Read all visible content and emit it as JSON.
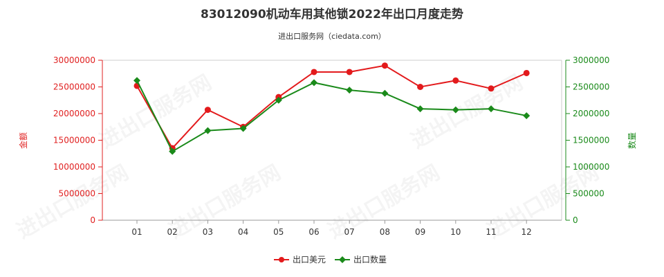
{
  "chart_data": {
    "type": "line",
    "title": "83012090机动车用其他锁2022年出口月度走势",
    "subtitle": "进出口服务网（ciedata.com）",
    "categories": [
      "01",
      "02",
      "03",
      "04",
      "05",
      "06",
      "07",
      "08",
      "09",
      "10",
      "11",
      "12"
    ],
    "y_left": {
      "label": "金额",
      "range": [
        0,
        30000000
      ],
      "ticks": [
        "0",
        "5000000",
        "10000000",
        "15000000",
        "20000000",
        "25000000",
        "30000000"
      ]
    },
    "y_right": {
      "label": "数量",
      "range": [
        0,
        3000000
      ],
      "ticks": [
        "0",
        "500000",
        "1000000",
        "1500000",
        "2000000",
        "2500000",
        "3000000"
      ]
    },
    "series": [
      {
        "name": "出口美元",
        "axis": "left",
        "color": "#e31a1c",
        "marker": "circle",
        "values": [
          25200000,
          13500000,
          20700000,
          17500000,
          23100000,
          27800000,
          27800000,
          29000000,
          25000000,
          26200000,
          24700000,
          27600000
        ]
      },
      {
        "name": "出口数量",
        "axis": "right",
        "color": "#1a8a1a",
        "marker": "diamond",
        "values": [
          2620000,
          1290000,
          1680000,
          1720000,
          2250000,
          2580000,
          2440000,
          2380000,
          2090000,
          2070000,
          2090000,
          1960000
        ]
      }
    ],
    "grid": false,
    "legend_position": "bottom-center",
    "watermark": "进出口服务网"
  }
}
